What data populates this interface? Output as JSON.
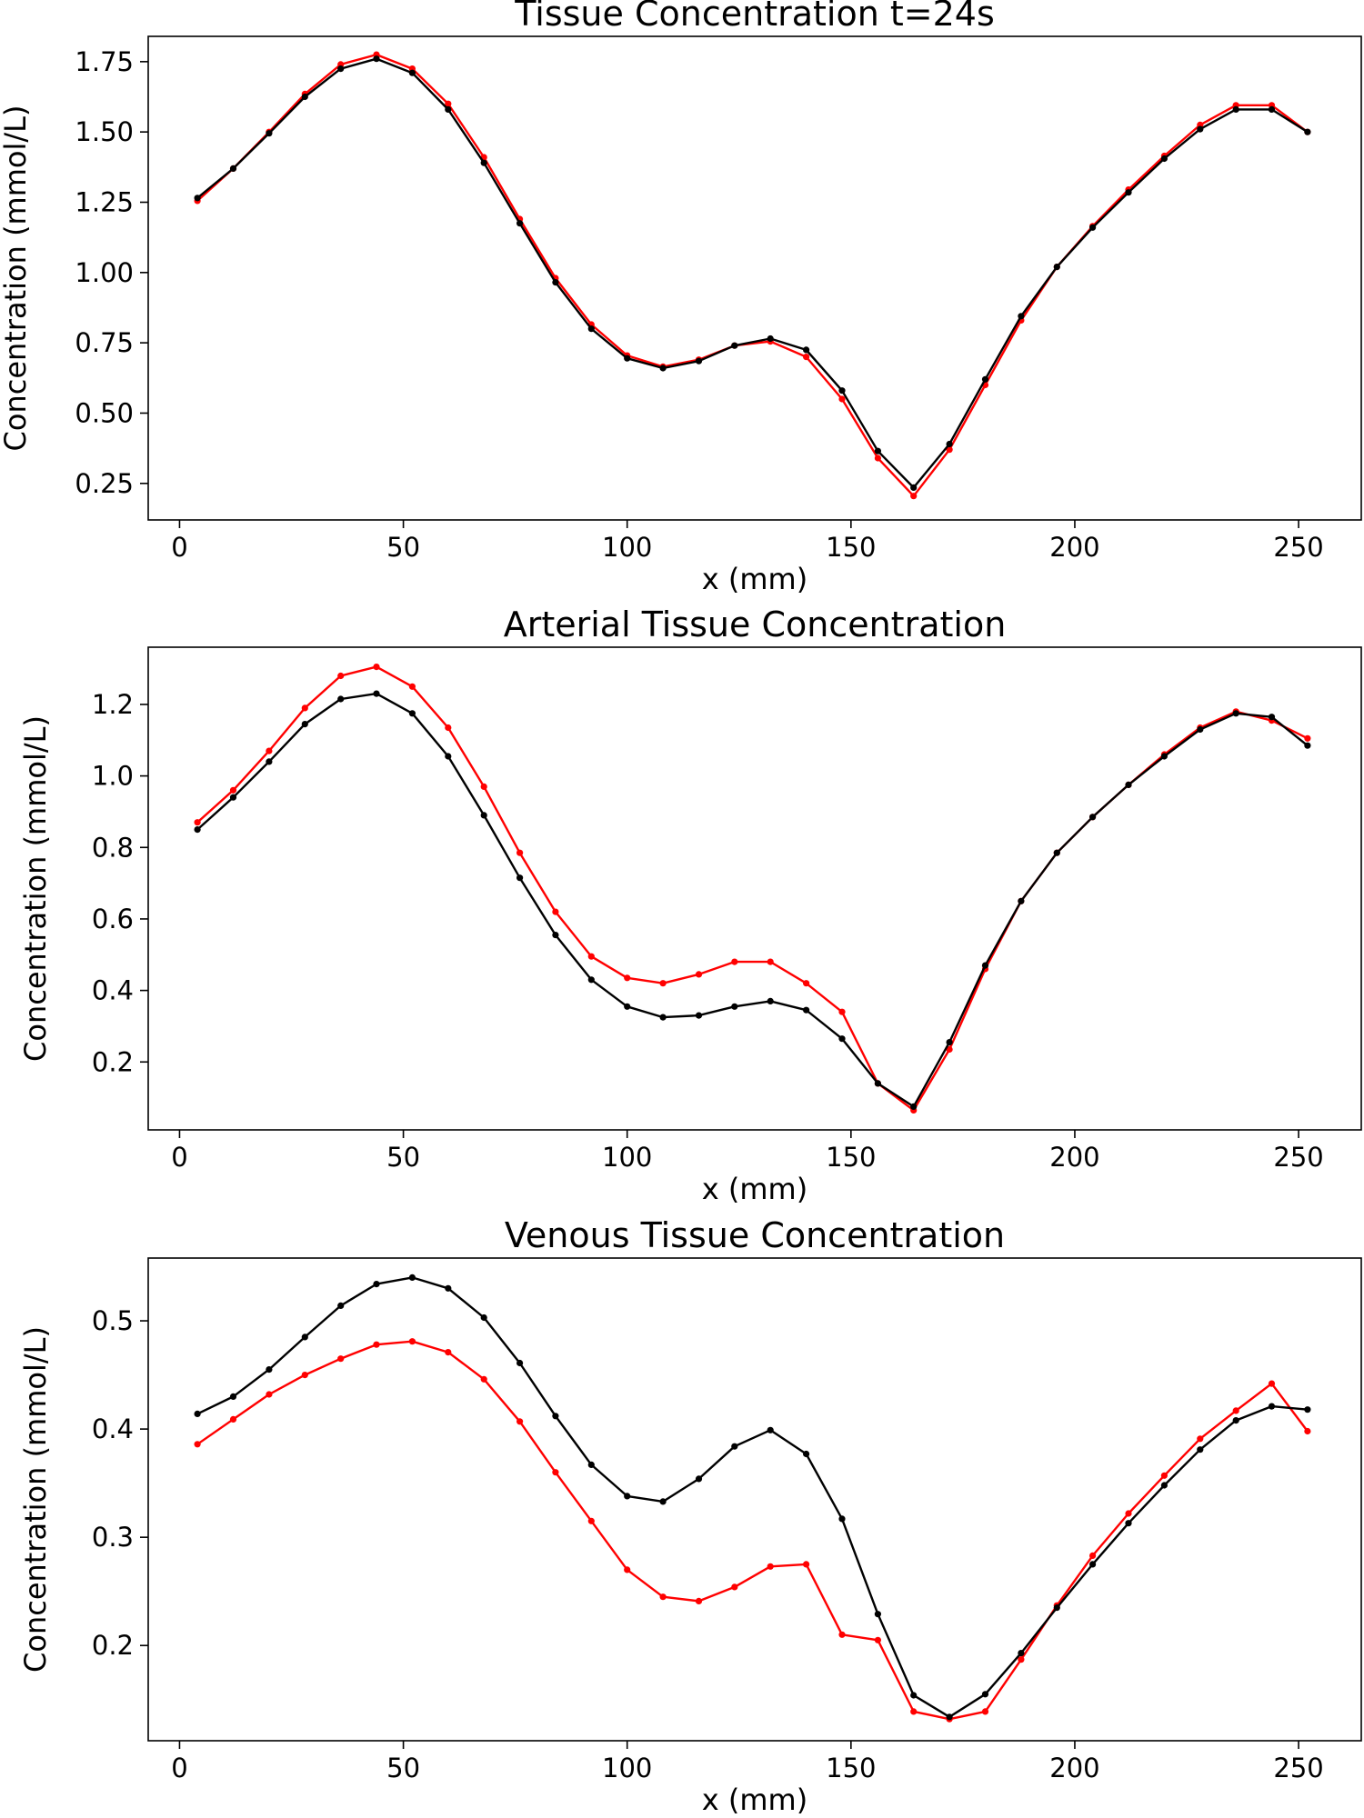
{
  "chart_data": [
    {
      "type": "line",
      "title": "Tissue Concentration t=24s",
      "xlabel": "x (mm)",
      "ylabel": "Concentration (mmol/L)",
      "xlim": [
        -7,
        264
      ],
      "ylim": [
        0.12,
        1.84
      ],
      "xticks": [
        0,
        50,
        100,
        150,
        200,
        250
      ],
      "yticks": [
        0.25,
        0.5,
        0.75,
        1.0,
        1.25,
        1.5,
        1.75
      ],
      "ytick_labels": [
        "0.25",
        "0.50",
        "0.75",
        "1.00",
        "1.25",
        "1.50",
        "1.75"
      ],
      "x": [
        4,
        12,
        20,
        28,
        36,
        44,
        52,
        60,
        68,
        76,
        84,
        92,
        100,
        108,
        116,
        124,
        132,
        140,
        148,
        156,
        164,
        172,
        180,
        188,
        196,
        204,
        212,
        220,
        228,
        236,
        244,
        252
      ],
      "series": [
        {
          "color": "#ff0000",
          "values": [
            1.255,
            1.37,
            1.5,
            1.635,
            1.74,
            1.775,
            1.725,
            1.6,
            1.41,
            1.19,
            0.98,
            0.815,
            0.705,
            0.665,
            0.69,
            0.74,
            0.755,
            0.7,
            0.55,
            0.34,
            0.205,
            0.37,
            0.6,
            0.83,
            1.02,
            1.165,
            1.295,
            1.415,
            1.525,
            1.595,
            1.595,
            1.5
          ]
        },
        {
          "color": "#000000",
          "values": [
            1.265,
            1.37,
            1.495,
            1.625,
            1.725,
            1.76,
            1.71,
            1.58,
            1.39,
            1.175,
            0.965,
            0.8,
            0.695,
            0.66,
            0.685,
            0.74,
            0.765,
            0.725,
            0.58,
            0.365,
            0.235,
            0.39,
            0.62,
            0.845,
            1.02,
            1.16,
            1.285,
            1.405,
            1.51,
            1.58,
            1.58,
            1.5
          ]
        }
      ]
    },
    {
      "type": "line",
      "title": "Arterial Tissue Concentration",
      "xlabel": "x (mm)",
      "ylabel": "Concentration (mmol/L)",
      "xlim": [
        -7,
        264
      ],
      "ylim": [
        0.01,
        1.36
      ],
      "xticks": [
        0,
        50,
        100,
        150,
        200,
        250
      ],
      "yticks": [
        0.2,
        0.4,
        0.6,
        0.8,
        1.0,
        1.2
      ],
      "ytick_labels": [
        "0.2",
        "0.4",
        "0.6",
        "0.8",
        "1.0",
        "1.2"
      ],
      "x": [
        4,
        12,
        20,
        28,
        36,
        44,
        52,
        60,
        68,
        76,
        84,
        92,
        100,
        108,
        116,
        124,
        132,
        140,
        148,
        156,
        164,
        172,
        180,
        188,
        196,
        204,
        212,
        220,
        228,
        236,
        244,
        252
      ],
      "series": [
        {
          "color": "#ff0000",
          "values": [
            0.87,
            0.96,
            1.07,
            1.19,
            1.28,
            1.305,
            1.25,
            1.135,
            0.97,
            0.785,
            0.62,
            0.495,
            0.435,
            0.42,
            0.445,
            0.48,
            0.48,
            0.42,
            0.34,
            0.14,
            0.065,
            0.235,
            0.46,
            0.65,
            0.785,
            0.885,
            0.975,
            1.06,
            1.135,
            1.18,
            1.155,
            1.105
          ]
        },
        {
          "color": "#000000",
          "values": [
            0.85,
            0.94,
            1.04,
            1.145,
            1.215,
            1.23,
            1.175,
            1.055,
            0.89,
            0.715,
            0.555,
            0.43,
            0.355,
            0.325,
            0.33,
            0.355,
            0.37,
            0.345,
            0.265,
            0.14,
            0.075,
            0.255,
            0.47,
            0.65,
            0.785,
            0.885,
            0.975,
            1.055,
            1.13,
            1.175,
            1.165,
            1.085
          ]
        }
      ]
    },
    {
      "type": "line",
      "title": "Venous Tissue Concentration",
      "xlabel": "x (mm)",
      "ylabel": "Concentration (mmol/L)",
      "xlim": [
        -7,
        264
      ],
      "ylim": [
        0.112,
        0.558
      ],
      "xticks": [
        0,
        50,
        100,
        150,
        200,
        250
      ],
      "yticks": [
        0.2,
        0.3,
        0.4,
        0.5
      ],
      "ytick_labels": [
        "0.2",
        "0.3",
        "0.4",
        "0.5"
      ],
      "x": [
        4,
        12,
        20,
        28,
        36,
        44,
        52,
        60,
        68,
        76,
        84,
        92,
        100,
        108,
        116,
        124,
        132,
        140,
        148,
        156,
        164,
        172,
        180,
        188,
        196,
        204,
        212,
        220,
        228,
        236,
        244,
        252
      ],
      "series": [
        {
          "color": "#ff0000",
          "values": [
            0.386,
            0.409,
            0.432,
            0.45,
            0.465,
            0.478,
            0.481,
            0.471,
            0.446,
            0.407,
            0.36,
            0.315,
            0.27,
            0.245,
            0.241,
            0.254,
            0.273,
            0.275,
            0.21,
            0.205,
            0.139,
            0.132,
            0.139,
            0.187,
            0.237,
            0.283,
            0.322,
            0.357,
            0.391,
            0.417,
            0.442,
            0.398
          ]
        },
        {
          "color": "#000000",
          "values": [
            0.414,
            0.43,
            0.455,
            0.485,
            0.514,
            0.534,
            0.54,
            0.53,
            0.503,
            0.461,
            0.412,
            0.367,
            0.338,
            0.333,
            0.354,
            0.384,
            0.399,
            0.377,
            0.317,
            0.229,
            0.154,
            0.134,
            0.155,
            0.193,
            0.235,
            0.275,
            0.313,
            0.348,
            0.381,
            0.408,
            0.421,
            0.418
          ]
        }
      ]
    }
  ]
}
